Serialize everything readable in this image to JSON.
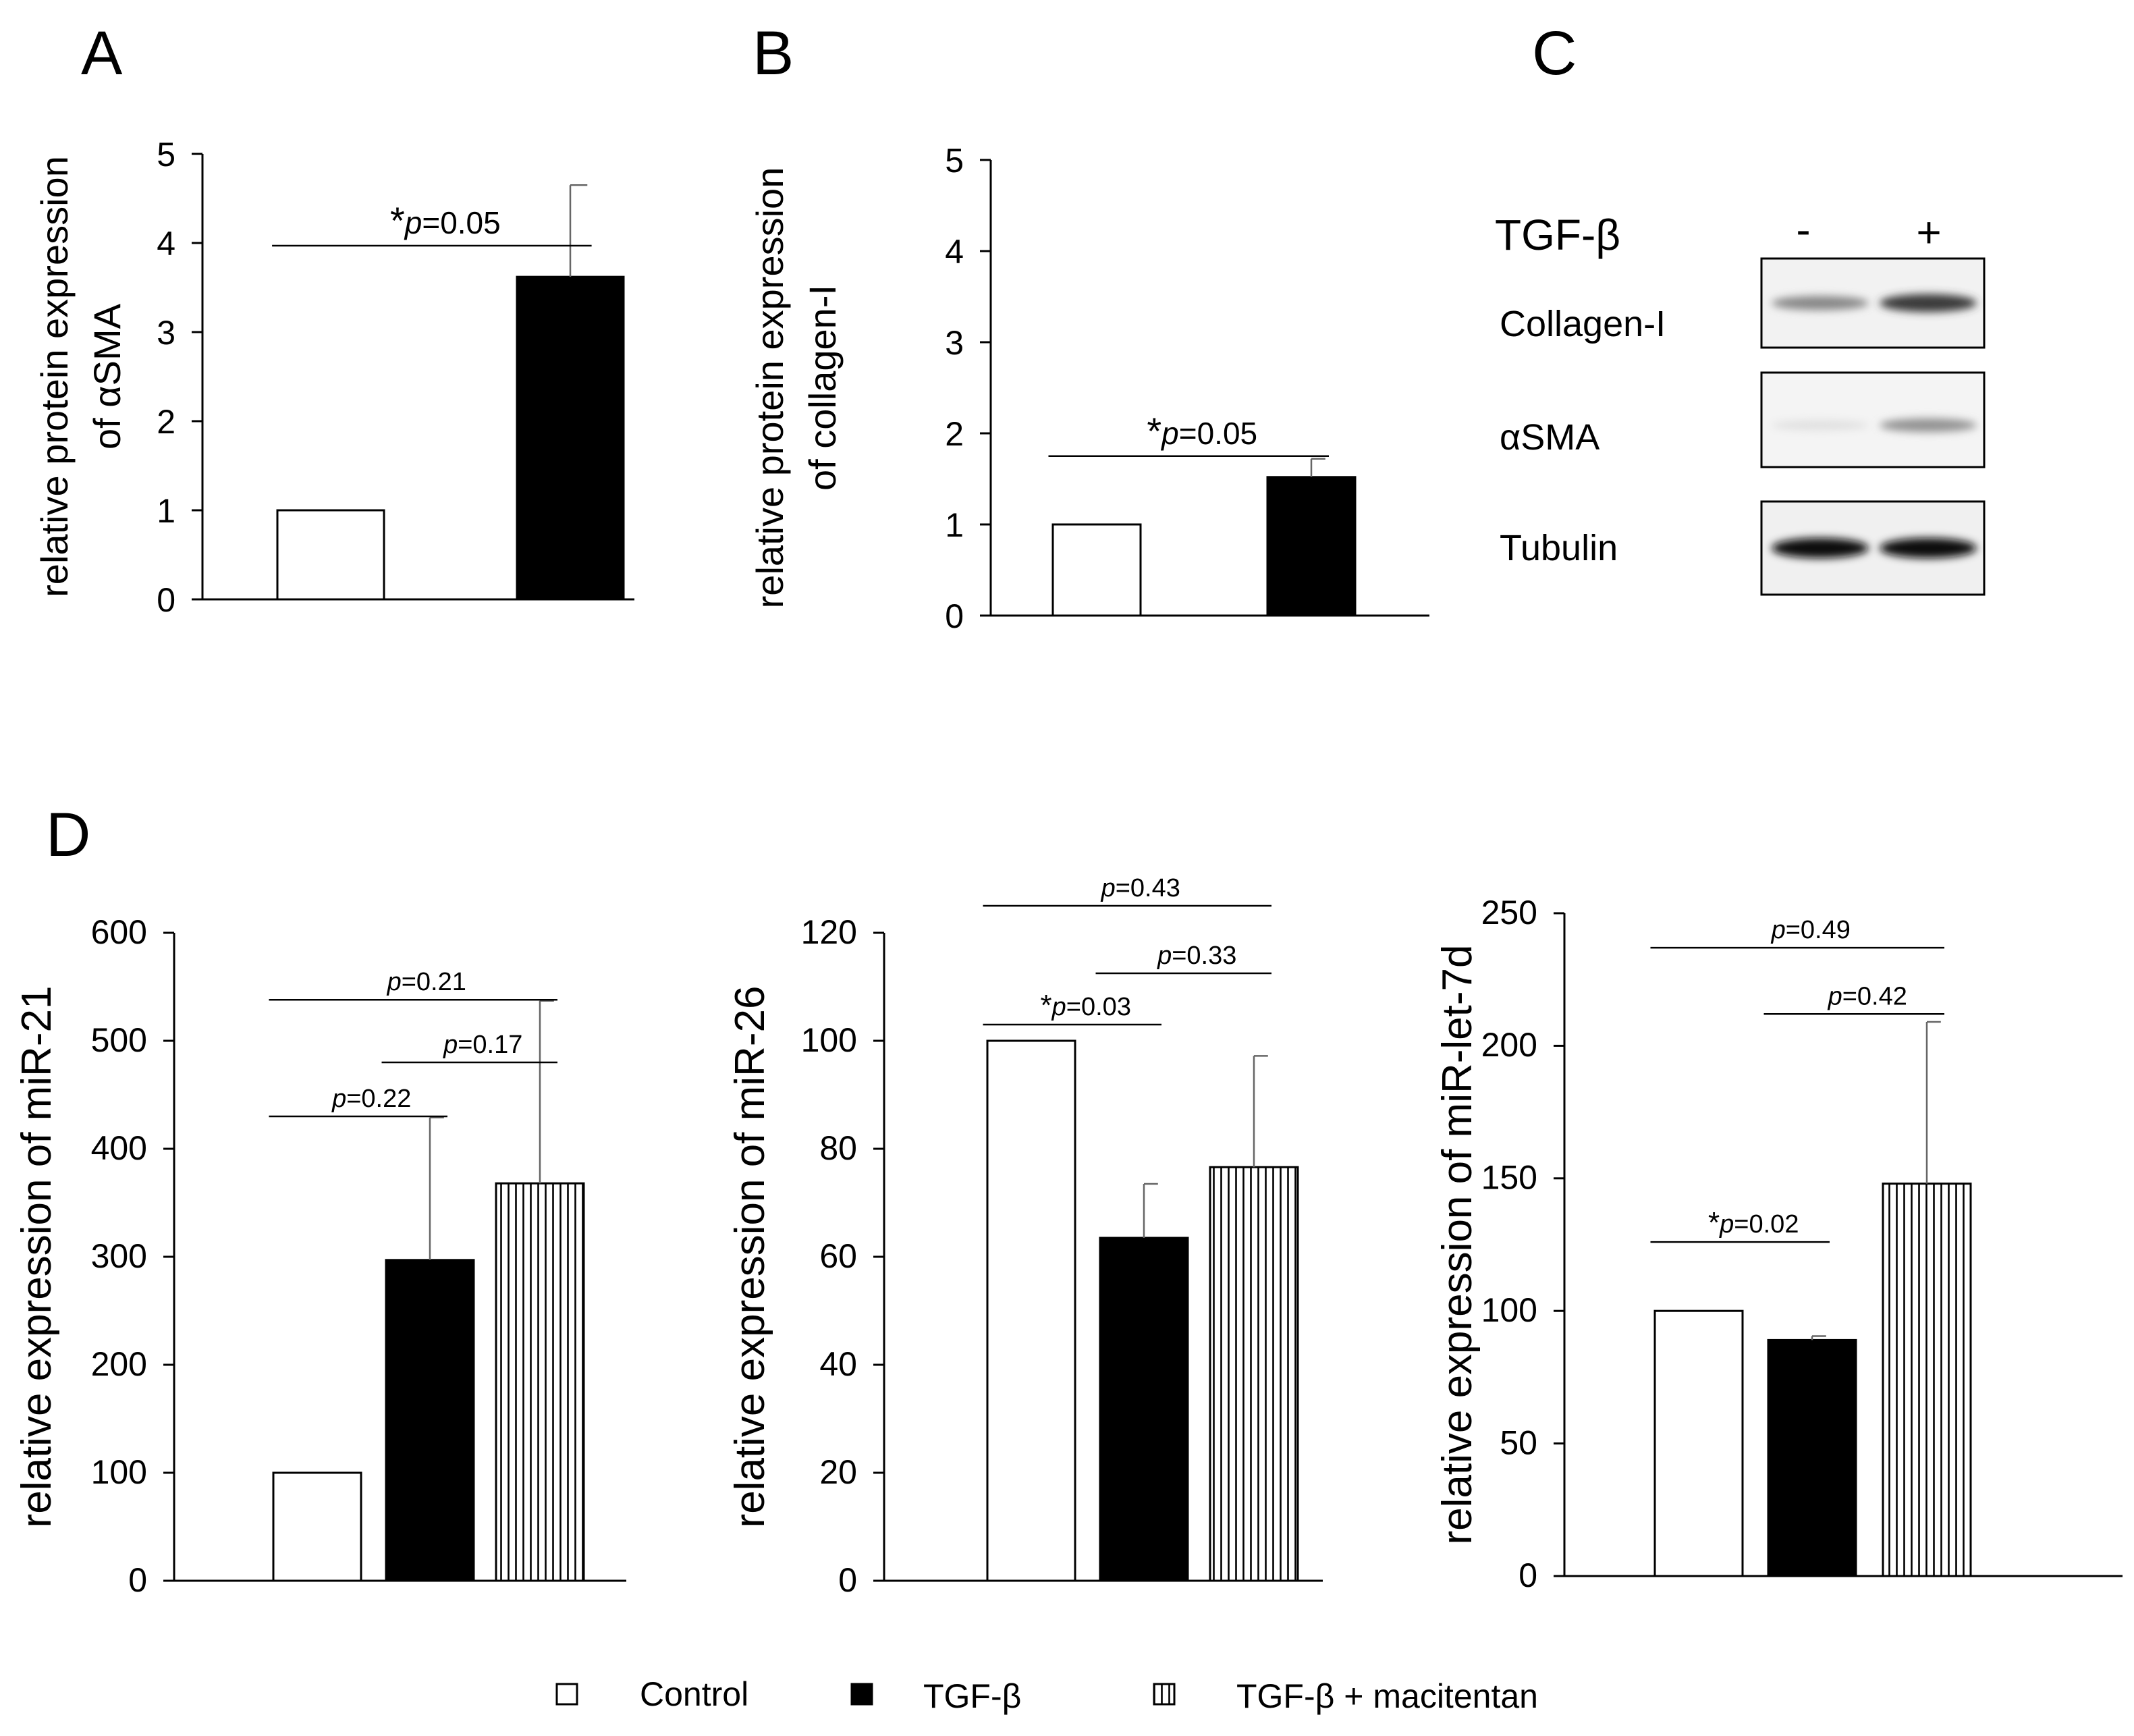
{
  "panel_letters": {
    "a": "A",
    "b": "B",
    "c": "C",
    "d": "D"
  },
  "colors": {
    "control": "#ffffff",
    "tgf": "#000000",
    "macitentan": "hatched-vertical"
  },
  "legend": [
    {
      "label": "Control",
      "symbol": "open-square"
    },
    {
      "label": "TGF-β",
      "symbol": "filled-square"
    },
    {
      "label": "TGF-β + macitentan",
      "symbol": "hatched-square"
    }
  ],
  "western_blot": {
    "header_label": "TGF-β",
    "lane_minus": "-",
    "lane_plus": "+",
    "rows": [
      {
        "label": "Collagen-I",
        "band_minus": 0.45,
        "band_plus": 0.8
      },
      {
        "label": "αSMA",
        "band_minus": 0.05,
        "band_plus": 0.4
      },
      {
        "label": "Tubulin",
        "band_minus": 1.0,
        "band_plus": 1.0
      }
    ]
  },
  "chart_data": [
    {
      "id": "A",
      "type": "bar",
      "ylabel_lines": [
        "relative protein expression",
        "of αSMA"
      ],
      "ylim": [
        0,
        5
      ],
      "yticks": [
        0,
        1,
        2,
        3,
        4,
        5
      ],
      "categories": [
        "Control",
        "TGF-β"
      ],
      "values": [
        1.0,
        3.62
      ],
      "errors": [
        0,
        1.03
      ],
      "fills": [
        "white",
        "black"
      ],
      "significance": [
        {
          "from": 0,
          "to": 1,
          "level": 3.97,
          "star": "*",
          "p": "p",
          "text": "=0.05"
        }
      ]
    },
    {
      "id": "B",
      "type": "bar",
      "ylabel_lines": [
        "relative protein expression",
        "of collagen-I"
      ],
      "ylim": [
        0,
        5
      ],
      "yticks": [
        0,
        1,
        2,
        3,
        4,
        5
      ],
      "categories": [
        "Control",
        "TGF-β"
      ],
      "values": [
        1.0,
        1.52
      ],
      "errors": [
        0,
        0.2
      ],
      "fills": [
        "white",
        "black"
      ],
      "significance": [
        {
          "from": 0,
          "to": 1,
          "level": 1.75,
          "star": "*",
          "p": "p",
          "text": "=0.05"
        }
      ]
    },
    {
      "id": "D1",
      "type": "bar",
      "ylabel_lines": [
        "relative expression of miR-21"
      ],
      "ylim": [
        0,
        600
      ],
      "yticks": [
        0,
        100,
        200,
        300,
        400,
        500,
        600
      ],
      "categories": [
        "Control",
        "TGF-β",
        "TGF-β + macitentan"
      ],
      "values": [
        100,
        297,
        368
      ],
      "errors": [
        0,
        132,
        169
      ],
      "fills": [
        "white",
        "black",
        "hatch"
      ],
      "significance": [
        {
          "from": 0,
          "to": 1,
          "level": 430,
          "star": "",
          "p": "p",
          "text": "=0.22"
        },
        {
          "from": 1,
          "to": 2,
          "level": 480,
          "star": "",
          "p": "p",
          "text": "=0.17"
        },
        {
          "from": 0,
          "to": 2,
          "level": 538,
          "star": "",
          "p": "p",
          "text": "=0.21"
        }
      ]
    },
    {
      "id": "D2",
      "type": "bar",
      "ylabel_lines": [
        "relative expression of miR-26"
      ],
      "ylim": [
        0,
        120
      ],
      "yticks": [
        0,
        20,
        40,
        60,
        80,
        100,
        120
      ],
      "categories": [
        "Control",
        "TGF-β",
        "TGF-β + macitentan"
      ],
      "values": [
        100,
        63.5,
        76.6
      ],
      "errors": [
        0,
        10,
        20.6
      ],
      "fills": [
        "white",
        "black",
        "hatch"
      ],
      "significance": [
        {
          "from": 0,
          "to": 1,
          "level": 103,
          "star": "*",
          "p": "p",
          "text": "=0.03"
        },
        {
          "from": 1,
          "to": 2,
          "level": 112.5,
          "star": "",
          "p": "p",
          "text": "=0.33"
        },
        {
          "from": 0,
          "to": 2,
          "level": 125,
          "star": "",
          "p": "p",
          "text": "=0.43"
        }
      ]
    },
    {
      "id": "D3",
      "type": "bar",
      "ylabel_lines": [
        "relative expression of miR-let-7d"
      ],
      "ylim": [
        0,
        250
      ],
      "yticks": [
        0,
        50,
        100,
        150,
        200,
        250
      ],
      "categories": [
        "Control",
        "TGF-β",
        "TGF-β + macitentan"
      ],
      "values": [
        100,
        89,
        148
      ],
      "errors": [
        0,
        1.5,
        61
      ],
      "fills": [
        "white",
        "black",
        "hatch"
      ],
      "significance": [
        {
          "from": 0,
          "to": 1,
          "level": 126,
          "star": "*",
          "p": "p",
          "text": "=0.02"
        },
        {
          "from": 1,
          "to": 2,
          "level": 212,
          "star": "",
          "p": "p",
          "text": "=0.42"
        },
        {
          "from": 0,
          "to": 2,
          "level": 237,
          "star": "",
          "p": "p",
          "text": "=0.49"
        }
      ]
    }
  ]
}
